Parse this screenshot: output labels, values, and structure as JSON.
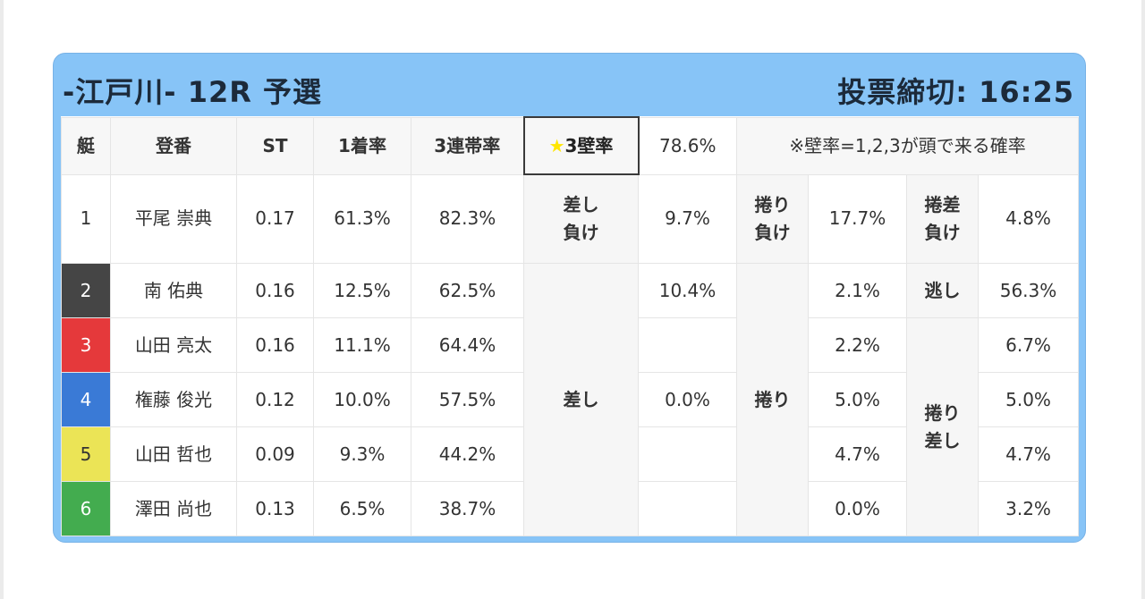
{
  "header": {
    "title": "-江戸川- 12R 予選",
    "deadline": "投票締切: 16:25"
  },
  "columns": {
    "boat": "艇",
    "reg": "登番",
    "st": "ST",
    "first_rate": "1着率",
    "top3_rate": "3連帯率",
    "wall_label": "★3壁率",
    "wall_value": "78.6%",
    "wall_note": "※壁率=1,2,3が頭で来る確率"
  },
  "racers": [
    {
      "boat": "1",
      "name": "平尾 崇典",
      "st": "0.17",
      "first": "61.3%",
      "top3": "82.3%",
      "color": "#ffffff"
    },
    {
      "boat": "2",
      "name": "南 佑典",
      "st": "0.16",
      "first": "12.5%",
      "top3": "62.5%",
      "color": "#454545"
    },
    {
      "boat": "3",
      "name": "山田 亮太",
      "st": "0.16",
      "first": "11.1%",
      "top3": "64.4%",
      "color": "#e5393b"
    },
    {
      "boat": "4",
      "name": "権藤 俊光",
      "st": "0.12",
      "first": "10.0%",
      "top3": "57.5%",
      "color": "#3a7ad6"
    },
    {
      "boat": "5",
      "name": "山田 哲也",
      "st": "0.09",
      "first": "9.3%",
      "top3": "44.2%",
      "color": "#ebe456"
    },
    {
      "boat": "6",
      "name": "澤田 尚也",
      "st": "0.13",
      "first": "6.5%",
      "top3": "38.7%",
      "color": "#43ac4f"
    }
  ],
  "kimarite": {
    "row1": {
      "sashi_make_label": "差し\n負け",
      "sashi_make_value": "9.7%",
      "makuri_make_label": "捲り\n負け",
      "makuri_make_value": "17.7%",
      "makurisashi_make_label": "捲差\n負け",
      "makurisashi_make_value": "4.8%"
    },
    "sashi_label": "差し",
    "sashi_values": [
      "10.4%",
      "",
      "0.0%",
      "",
      ""
    ],
    "makuri_label": "捲り",
    "makuri_values": [
      "2.1%",
      "2.2%",
      "5.0%",
      "4.7%",
      "0.0%"
    ],
    "nige_label": "逃し",
    "nige_value": "56.3%",
    "makurisashi_label": "捲り\n差し",
    "makurisashi_values": [
      "6.7%",
      "5.0%",
      "4.7%",
      "3.2%"
    ]
  }
}
